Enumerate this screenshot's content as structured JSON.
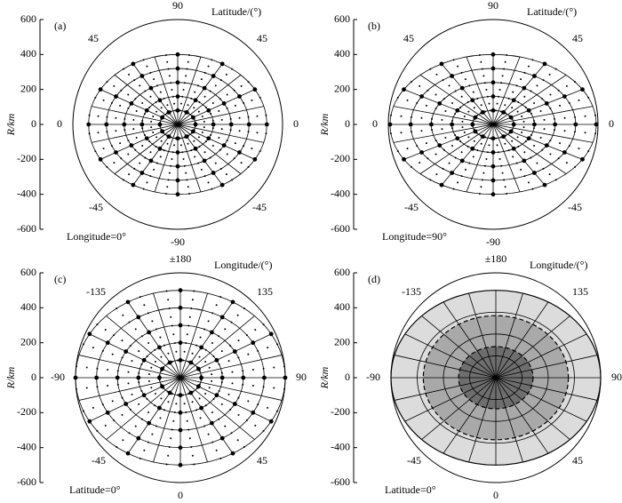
{
  "chart_data": [
    {
      "type": "polar-grid",
      "panel": "(a)",
      "ylabel": "R/km",
      "angle_title": "Latitude/(°)",
      "condition": "Longitude=0°",
      "angle_labels": [
        "90",
        "45",
        "45",
        "0",
        "0",
        "-45",
        "-45",
        "-90"
      ],
      "ylim": [
        -600,
        600
      ],
      "yticks": [
        -600,
        -400,
        -200,
        0,
        200,
        400,
        600
      ],
      "grid_rx": 510,
      "grid_ry": 400
    },
    {
      "type": "polar-grid",
      "panel": "(b)",
      "ylabel": "R/km",
      "angle_title": "Latitude/(°)",
      "condition": "Longitude=90°",
      "angle_labels": [
        "90",
        "45",
        "45",
        "0",
        "0",
        "-45",
        "-45",
        "-90"
      ],
      "ylim": [
        -600,
        600
      ],
      "yticks": [
        -600,
        -400,
        -200,
        0,
        200,
        400,
        600
      ],
      "grid_rx": 590,
      "grid_ry": 400
    },
    {
      "type": "polar-grid",
      "panel": "(c)",
      "ylabel": "R/km",
      "angle_title": "Longitude/(°)",
      "condition": "Latitude=0°",
      "angle_labels": [
        "±180",
        "-135",
        "135",
        "-90",
        "90",
        "-45",
        "45",
        "0"
      ],
      "ylim": [
        -600,
        600
      ],
      "yticks": [
        -600,
        -400,
        -200,
        0,
        200,
        400,
        600
      ],
      "grid_rx": 600,
      "grid_ry": 500
    },
    {
      "type": "zones",
      "panel": "(d)",
      "ylabel": "R/km",
      "angle_title": "Longitude/(°)",
      "condition": "Latitude=0°",
      "angle_labels": [
        "±180",
        "-135",
        "135",
        "-90",
        "90",
        "-45",
        "45",
        "0"
      ],
      "ylim": [
        -600,
        600
      ],
      "yticks": [
        -600,
        -400,
        -200,
        0,
        200,
        400,
        600
      ],
      "grid_rx": 600,
      "grid_ry": 500,
      "zones": [
        {
          "rx": 600,
          "ry": 500,
          "color": "#dcdcdc"
        },
        {
          "rx": 415,
          "ry": 355,
          "color": "#a9a9a9"
        },
        {
          "rx": 213,
          "ry": 178,
          "color": "#6e6e6e"
        }
      ]
    }
  ]
}
